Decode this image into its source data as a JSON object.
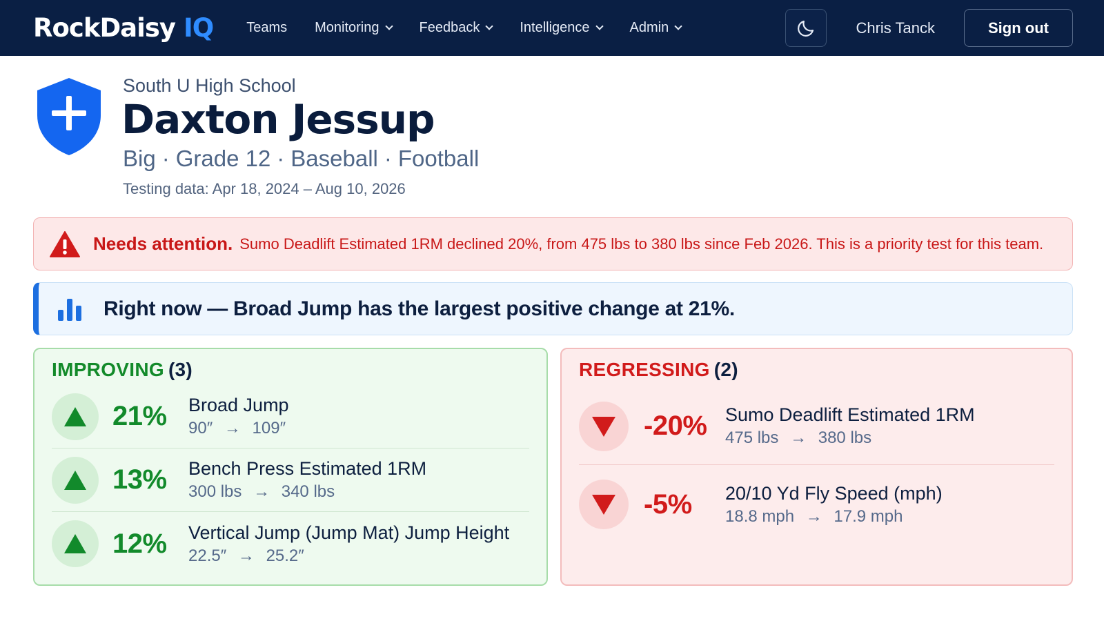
{
  "nav": {
    "brand_main": "RockDaisy",
    "brand_accent": "IQ",
    "links": [
      {
        "label": "Teams",
        "dropdown": false
      },
      {
        "label": "Monitoring",
        "dropdown": true
      },
      {
        "label": "Feedback",
        "dropdown": true
      },
      {
        "label": "Intelligence",
        "dropdown": true
      },
      {
        "label": "Admin",
        "dropdown": true
      }
    ],
    "user_name": "Chris Tanck",
    "sign_out": "Sign out",
    "theme_icon": "moon-icon"
  },
  "profile": {
    "school": "South U High School",
    "name": "Daxton Jessup",
    "meta": [
      "Big",
      "Grade 12",
      "Baseball",
      "Football"
    ],
    "meta_separator": "·",
    "testing_range": "Testing data: Apr 18, 2024 – Aug 10, 2026"
  },
  "alert": {
    "title": "Needs attention.",
    "text": "Sumo Deadlift Estimated 1RM declined 20%, from 475 lbs to 380 lbs since Feb 2026. This is a priority test for this team."
  },
  "insight": {
    "text": "Right now — Broad Jump has the largest positive change at 21%."
  },
  "improving": {
    "label": "IMPROVING",
    "count": "(3)",
    "items": [
      {
        "pct": "21%",
        "name": "Broad Jump",
        "from": "90″",
        "to": "109″"
      },
      {
        "pct": "13%",
        "name": "Bench Press Estimated 1RM",
        "from": "300 lbs",
        "to": "340 lbs"
      },
      {
        "pct": "12%",
        "name": "Vertical Jump (Jump Mat) Jump Height",
        "from": "22.5″",
        "to": "25.2″"
      }
    ]
  },
  "regressing": {
    "label": "REGRESSING",
    "count": "(2)",
    "items": [
      {
        "pct": "-20%",
        "name": "Sumo Deadlift Estimated 1RM",
        "from": "475 lbs",
        "to": "380 lbs"
      },
      {
        "pct": "-5%",
        "name": "20/10 Yd Fly Speed (mph)",
        "from": "18.8 mph",
        "to": "17.9 mph"
      }
    ]
  },
  "arrow": "→",
  "colors": {
    "nav_bg": "#0a1f44",
    "accent_blue": "#2f8cff",
    "improve_green": "#128a2b",
    "regress_red": "#d11b1b"
  }
}
